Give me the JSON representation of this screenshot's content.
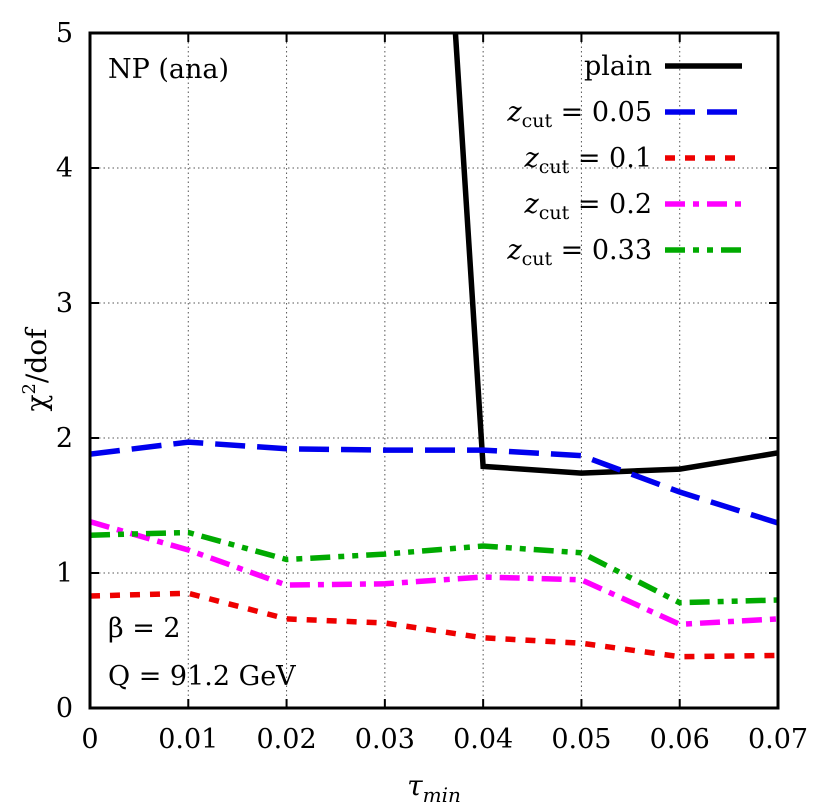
{
  "chart_data": {
    "type": "line",
    "xlabel_main": "τ",
    "xlabel_sub": "min",
    "ylabel_main": "χ",
    "ylabel_sup": "2",
    "ylabel_rest": "/dof",
    "xlim": [
      0,
      0.07
    ],
    "ylim": [
      0,
      5
    ],
    "xticks": [
      "0",
      "0.01",
      "0.02",
      "0.03",
      "0.04",
      "0.05",
      "0.06",
      "0.07"
    ],
    "yticks": [
      "0",
      "1",
      "2",
      "3",
      "4",
      "5"
    ],
    "grid": true,
    "legend_position": "top-right",
    "annotations": {
      "top_left": "NP (ana)",
      "beta": "β = 2",
      "q": "Q = 91.2 GeV"
    },
    "series": [
      {
        "name": "plain",
        "label_main": "plain",
        "label_sub": "",
        "label_rest": "",
        "color": "#000000",
        "dash": "solid",
        "x": [
          0.037,
          0.04,
          0.05,
          0.06,
          0.07
        ],
        "y": [
          5.2,
          1.79,
          1.74,
          1.77,
          1.89
        ]
      },
      {
        "name": "z_cut = 0.05",
        "label_main": "z",
        "label_sub": "cut",
        "label_rest": " = 0.05",
        "color": "#0000ee",
        "dash": "long",
        "x": [
          0,
          0.01,
          0.02,
          0.03,
          0.04,
          0.05,
          0.06,
          0.07
        ],
        "y": [
          1.88,
          1.97,
          1.92,
          1.91,
          1.91,
          1.87,
          1.6,
          1.37
        ]
      },
      {
        "name": "z_cut = 0.1",
        "label_main": "z",
        "label_sub": "cut",
        "label_rest": " = 0.1",
        "color": "#ee0000",
        "dash": "short",
        "x": [
          0,
          0.01,
          0.02,
          0.03,
          0.04,
          0.05,
          0.06,
          0.07
        ],
        "y": [
          0.83,
          0.85,
          0.66,
          0.63,
          0.52,
          0.48,
          0.38,
          0.39
        ]
      },
      {
        "name": "z_cut = 0.2",
        "label_main": "z",
        "label_sub": "cut",
        "label_rest": " = 0.2",
        "color": "#ff00ff",
        "dash": "dashdot",
        "x": [
          0,
          0.01,
          0.02,
          0.03,
          0.04,
          0.05,
          0.06,
          0.07
        ],
        "y": [
          1.38,
          1.17,
          0.91,
          0.92,
          0.97,
          0.95,
          0.62,
          0.66
        ]
      },
      {
        "name": "z_cut = 0.33",
        "label_main": "z",
        "label_sub": "cut",
        "label_rest": " = 0.33",
        "color": "#00aa00",
        "dash": "dashdotdot",
        "x": [
          0,
          0.01,
          0.02,
          0.03,
          0.04,
          0.05,
          0.06,
          0.07
        ],
        "y": [
          1.28,
          1.3,
          1.1,
          1.14,
          1.2,
          1.15,
          0.78,
          0.8
        ]
      }
    ]
  }
}
